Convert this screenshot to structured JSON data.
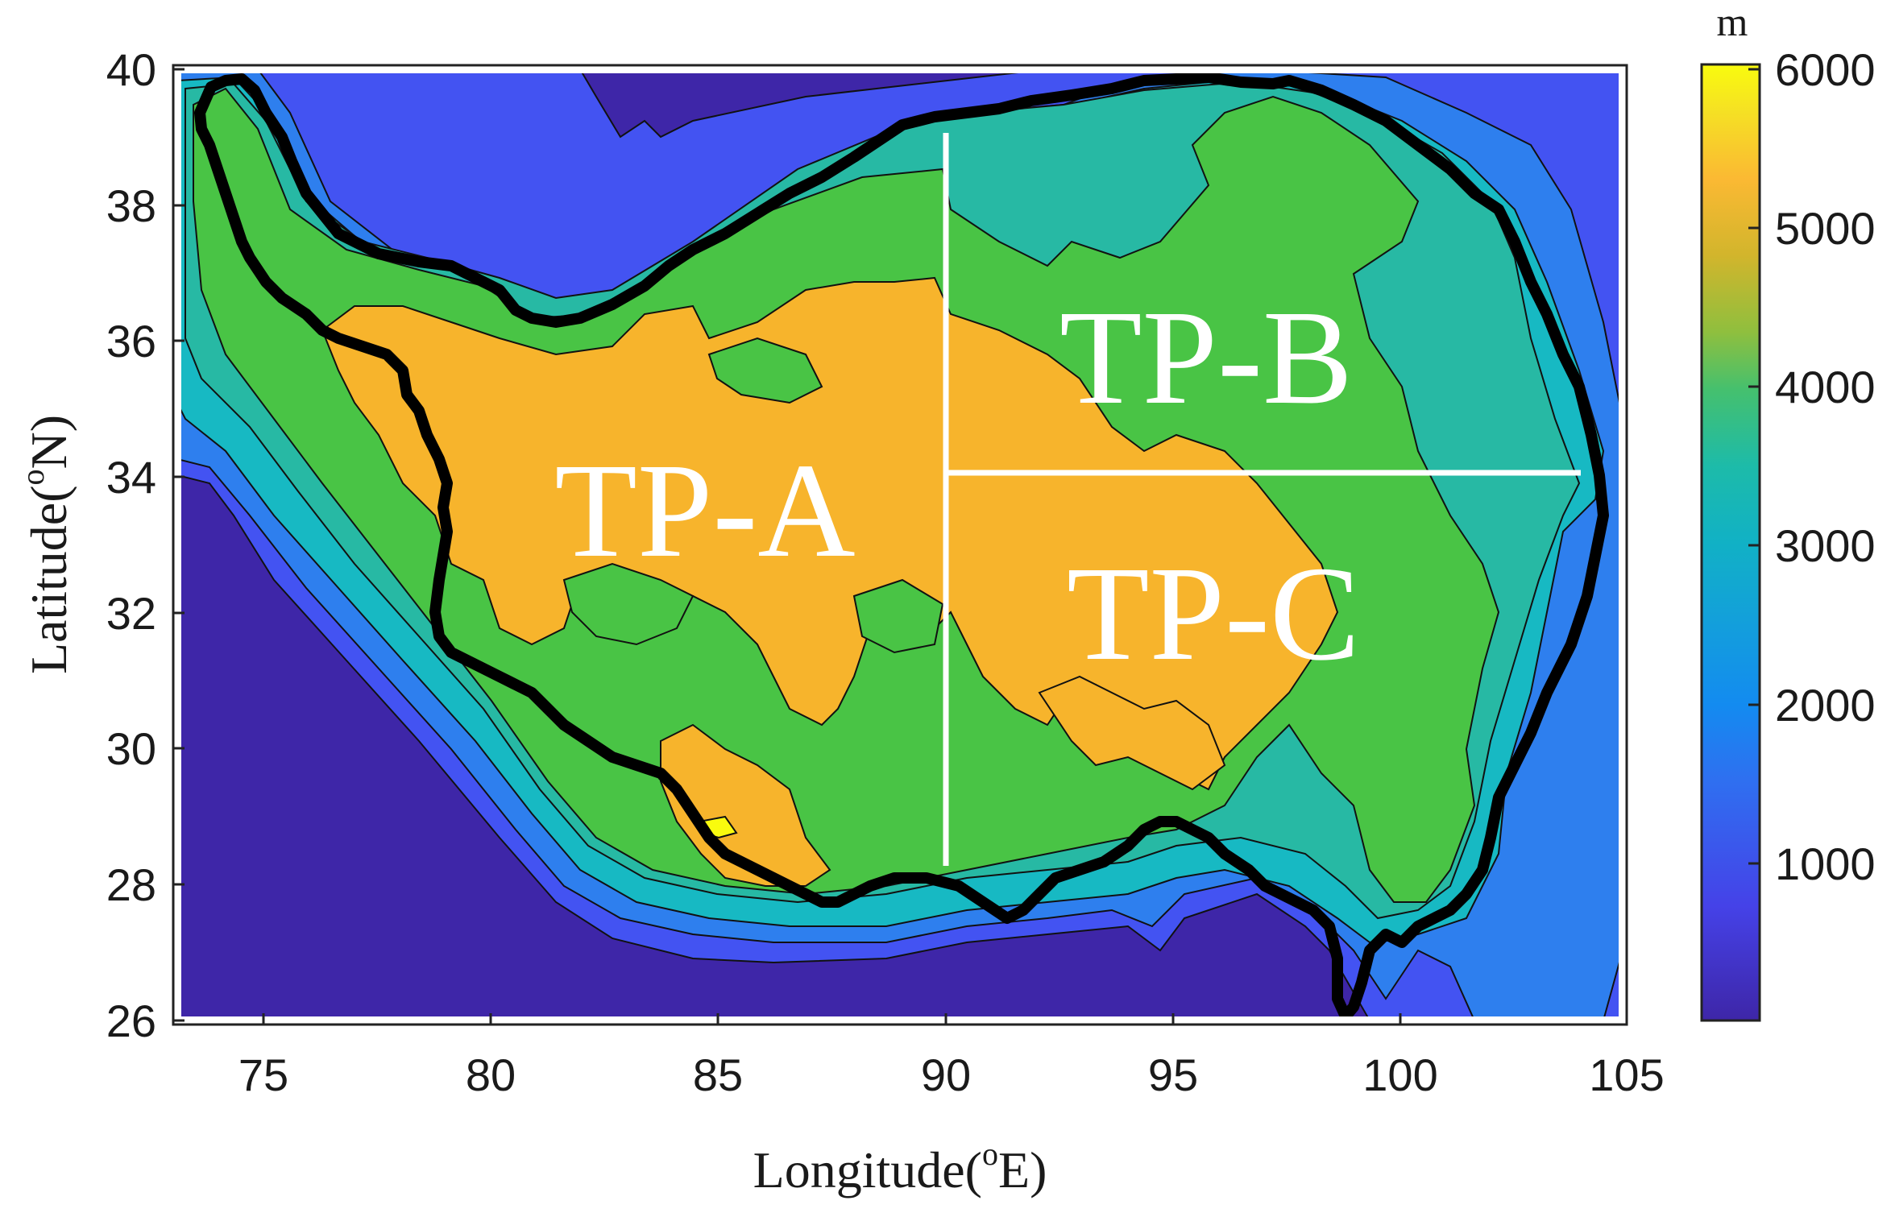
{
  "map": {
    "colorbar": {
      "unit": "m",
      "ticks": [
        "6000",
        "5000",
        "4000",
        "3000",
        "2000",
        "1000"
      ],
      "range": [
        0,
        6000
      ],
      "colormap": "parula"
    },
    "axes": {
      "x_ticks": [
        "75",
        "80",
        "85",
        "90",
        "95",
        "100",
        "105"
      ],
      "y_ticks": [
        "40",
        "38",
        "36",
        "34",
        "32",
        "30",
        "28",
        "26"
      ],
      "x_label_main": "Longitude(",
      "x_label_sup": "o",
      "x_label_end": "E)",
      "y_label_main": "Latitude(",
      "y_label_sup": "o",
      "y_label_end": "N)",
      "x_range": [
        73,
        105
      ],
      "y_range": [
        26,
        40
      ]
    },
    "regions": [
      {
        "id": "A",
        "label": "TP-A"
      },
      {
        "id": "B",
        "label": "TP-B"
      },
      {
        "id": "C",
        "label": "TP-C"
      }
    ],
    "dividers": {
      "lon": 90,
      "lat": 34
    },
    "elevation_colors": {
      "below_1000": "#3e26a8",
      "1000_1500": "#4353f2",
      "1500_2000": "#2e7fee",
      "2000_2500": "#1aa5d9",
      "2500_3000": "#17b9c3",
      "3000_3500": "#27b9a4",
      "3500_4000": "#3ebb5e",
      "4000_4500": "#49c445",
      "4500_5000": "#f7b42c",
      "5000_plus": "#f9fb0e"
    },
    "boundary_color": "#000000",
    "divider_color": "#ffffff"
  }
}
